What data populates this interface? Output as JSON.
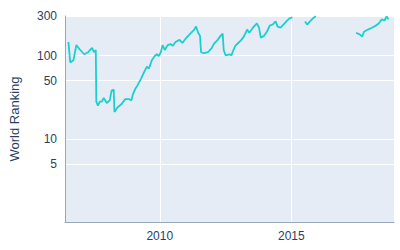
{
  "chart_data": {
    "type": "line",
    "y_label": "World Ranking",
    "log": "y",
    "grid": true,
    "color": "#1ccfcf",
    "xlim": [
      2006.4,
      2018.9
    ],
    "xticks": [
      2010,
      2015
    ],
    "ylim": [
      1,
      300
    ],
    "yticks": [
      5,
      10,
      50,
      100,
      300
    ],
    "x": [
      2006.53,
      2006.6,
      2006.72,
      2006.83,
      2006.98,
      2007.13,
      2007.28,
      2007.35,
      2007.43,
      2007.5,
      2007.57,
      2007.59,
      2007.65,
      2007.72,
      2007.8,
      2007.87,
      2007.99,
      2008.1,
      2008.17,
      2008.25,
      2008.28,
      2008.4,
      2008.54,
      2008.69,
      2008.84,
      2008.92,
      2008.99,
      2009.07,
      2009.14,
      2009.29,
      2009.4,
      2009.51,
      2009.59,
      2009.7,
      2009.81,
      2009.89,
      2009.96,
      2010.04,
      2010.11,
      2010.19,
      2010.3,
      2010.41,
      2010.49,
      2010.6,
      2010.75,
      2010.86,
      2011.01,
      2011.16,
      2011.31,
      2011.38,
      2011.46,
      2011.53,
      2011.57,
      2011.68,
      2011.83,
      2011.98,
      2012.05,
      2012.2,
      2012.31,
      2012.39,
      2012.43,
      2012.5,
      2012.65,
      2012.72,
      2012.8,
      2012.87,
      2013.02,
      2013.1,
      2013.21,
      2013.32,
      2013.4,
      2013.54,
      2013.69,
      2013.77,
      2013.84,
      2013.96,
      2014.07,
      2014.18,
      2014.29,
      2014.4,
      2014.48,
      2014.59,
      2014.7,
      2014.81,
      2014.93,
      2015.04,
      2015.25,
      2015.52,
      2015.6,
      2015.71,
      2015.82,
      2015.93,
      2016.7,
      2017.46,
      2017.61,
      2017.69,
      2017.76,
      2017.91,
      2018.06,
      2018.21,
      2018.32,
      2018.43,
      2018.54,
      2018.62,
      2018.69
    ],
    "values": [
      146,
      83,
      88,
      134,
      117,
      104,
      110,
      117,
      124,
      110,
      117,
      28,
      25,
      28,
      28,
      31,
      27,
      29,
      38,
      39,
      21,
      24,
      26,
      30,
      30,
      29,
      35,
      40,
      43,
      53,
      63,
      74,
      70,
      88,
      99,
      104,
      99,
      110,
      134,
      117,
      134,
      138,
      131,
      146,
      155,
      142,
      164,
      184,
      206,
      224,
      189,
      173,
      110,
      107,
      110,
      124,
      138,
      155,
      173,
      184,
      117,
      101,
      104,
      101,
      117,
      131,
      146,
      155,
      173,
      206,
      189,
      217,
      244,
      217,
      164,
      173,
      194,
      230,
      237,
      258,
      224,
      217,
      237,
      258,
      281,
      288,
      null,
      258,
      237,
      258,
      281,
      297,
      null,
      189,
      179,
      169,
      194,
      206,
      217,
      230,
      244,
      273,
      265,
      297,
      273
    ]
  }
}
